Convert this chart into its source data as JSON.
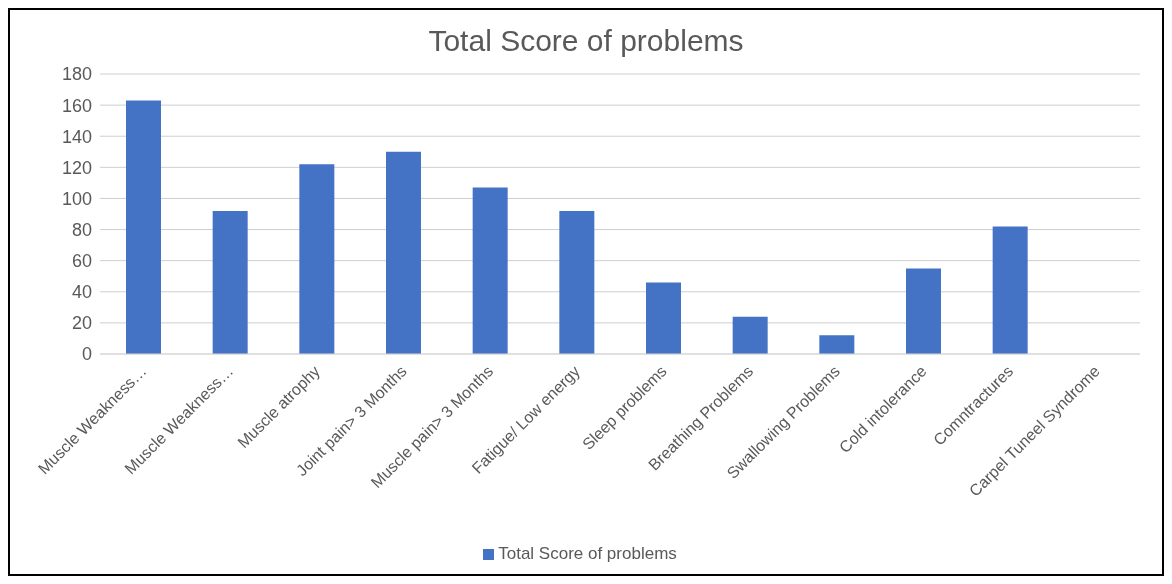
{
  "chart_data": {
    "type": "bar",
    "title": "Total Score of problems",
    "categories": [
      "Muscle Weakness…",
      "Muscle Weakness…",
      "Muscle atrophy",
      "Joint pain> 3 Months",
      "Muscle pain> 3 Months",
      "Fatigue/ Low energy",
      "Sleep problems",
      "Breathing Problems",
      "Swallowing Problems",
      "Cold intolerance",
      "Comntractures",
      "Carpel Tuneel Syndrome"
    ],
    "series": [
      {
        "name": "Total Score of problems",
        "color": "#4472c4",
        "values": [
          163,
          92,
          122,
          130,
          107,
          92,
          46,
          24,
          12,
          55,
          82,
          0
        ]
      }
    ],
    "ylim": [
      0,
      180
    ],
    "yticks": [
      0,
      20,
      40,
      60,
      80,
      100,
      120,
      140,
      160,
      180
    ],
    "grid": "y",
    "legend": "bottom"
  }
}
